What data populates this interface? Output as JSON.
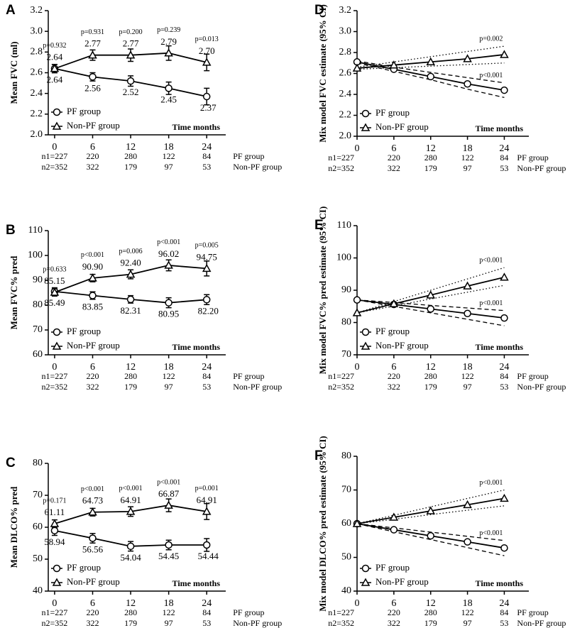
{
  "chart_data": [
    {
      "type": "line",
      "panel": "A",
      "ylabel": "Mean FVC (ml)",
      "xlabel": "Time months",
      "x": [
        0,
        6,
        12,
        18,
        24
      ],
      "xlim": [
        -1,
        27
      ],
      "xticks": [
        0,
        6,
        12,
        18,
        24
      ],
      "ylim": [
        2.0,
        3.2
      ],
      "yticks": [
        {
          "value": 2.0,
          "label": "2.0"
        },
        2.2,
        2.4,
        2.6,
        2.8,
        {
          "value": 3.0,
          "label": "3.0"
        },
        3.2
      ],
      "legend": "lower left",
      "pvalues": [
        "p=0.932",
        "p=0.931",
        "p=0.200",
        "p=0.239",
        "p=0.013"
      ],
      "series": [
        {
          "name": "PF group",
          "color": "#000000",
          "marker": "circle",
          "values": [
            2.64,
            2.56,
            2.52,
            2.45,
            2.37
          ],
          "value_labels": [
            "2.64",
            "2.56",
            "2.52",
            "2.45",
            "2.37"
          ],
          "error": [
            0.04,
            0.04,
            0.05,
            0.06,
            0.08
          ]
        },
        {
          "name": "Non-PF group",
          "color": "#000000",
          "marker": "triangle",
          "values": [
            2.64,
            2.77,
            2.77,
            2.79,
            2.7
          ],
          "value_labels": [
            "2.64",
            "2.77",
            "2.77",
            "2.79",
            "2.70"
          ],
          "error": [
            0.04,
            0.05,
            0.06,
            0.07,
            0.08
          ]
        }
      ],
      "n_rows": [
        {
          "start": "n1=227",
          "counts": [
            220,
            280,
            122,
            84
          ],
          "group": "PF group"
        },
        {
          "start": "n2=352",
          "counts": [
            322,
            179,
            97,
            53
          ],
          "group": "Non-PF group"
        }
      ]
    },
    {
      "type": "line",
      "panel": "B",
      "ylabel": "Mean FVC% pred",
      "xlabel": "Time months",
      "x": [
        0,
        6,
        12,
        18,
        24
      ],
      "xlim": [
        -1,
        27
      ],
      "xticks": [
        0,
        6,
        12,
        18,
        24
      ],
      "ylim": [
        60,
        110
      ],
      "yticks": [
        60,
        70,
        80,
        90,
        100,
        110
      ],
      "legend": "lower left",
      "pvalues": [
        "p=0.633",
        "p<0.001",
        "p=0.006",
        "p<0.001",
        "p=0.005"
      ],
      "series": [
        {
          "name": "PF group",
          "color": "#000000",
          "marker": "circle",
          "values": [
            85.49,
            83.85,
            82.31,
            80.95,
            82.2
          ],
          "value_labels": [
            "85.49",
            "83.85",
            "82.31",
            "80.95",
            "82.20"
          ],
          "error": [
            1.5,
            1.5,
            1.5,
            2,
            2
          ]
        },
        {
          "name": "Non-PF group",
          "color": "#000000",
          "marker": "triangle",
          "values": [
            85.15,
            90.9,
            92.4,
            96.02,
            94.75
          ],
          "value_labels": [
            "85.15",
            "90.90",
            "92.40",
            "96.02",
            "94.75"
          ],
          "error": [
            1.5,
            1.5,
            1.8,
            2.2,
            3
          ]
        }
      ],
      "n_rows": [
        {
          "start": "n1=227",
          "counts": [
            220,
            280,
            122,
            84
          ],
          "group": "PF group"
        },
        {
          "start": "n2=352",
          "counts": [
            322,
            179,
            97,
            53
          ],
          "group": "Non-PF group"
        }
      ]
    },
    {
      "type": "line",
      "panel": "C",
      "ylabel": "Mean DLCO% pred",
      "xlabel": "Time months",
      "x": [
        0,
        6,
        12,
        18,
        24
      ],
      "xlim": [
        -1,
        27
      ],
      "xticks": [
        0,
        6,
        12,
        18,
        24
      ],
      "ylim": [
        40,
        80
      ],
      "yticks": [
        40,
        50,
        60,
        70,
        80
      ],
      "legend": "lower left",
      "pvalues": [
        "p=0.171",
        "p<0.001",
        "p<0.001",
        "p<0.001",
        "p=0.001"
      ],
      "series": [
        {
          "name": "PF group",
          "color": "#000000",
          "marker": "circle",
          "values": [
            58.94,
            56.56,
            54.04,
            54.45,
            54.44
          ],
          "value_labels": [
            "58.94",
            "56.56",
            "54.04",
            "54.45",
            "54.44"
          ],
          "error": [
            1.5,
            1.5,
            1.5,
            1.5,
            2
          ]
        },
        {
          "name": "Non-PF group",
          "color": "#000000",
          "marker": "triangle",
          "values": [
            61.11,
            64.73,
            64.91,
            66.87,
            64.91
          ],
          "value_labels": [
            "61.11",
            "64.73",
            "64.91",
            "66.87",
            "64.91"
          ],
          "error": [
            1.2,
            1.2,
            1.5,
            2,
            2.5
          ]
        }
      ],
      "n_rows": [
        {
          "start": "n1=227",
          "counts": [
            220,
            280,
            122,
            84
          ],
          "group": "PF group"
        },
        {
          "start": "n2=352",
          "counts": [
            322,
            179,
            97,
            53
          ],
          "group": "Non-PF group"
        }
      ]
    },
    {
      "type": "line",
      "panel": "D",
      "ylabel": "Mix model FVC estimate (95% CI)",
      "xlabel": "Time months",
      "x": [
        0,
        6,
        12,
        18,
        24
      ],
      "xlim": [
        0,
        28
      ],
      "xticks": [
        0,
        6,
        12,
        18,
        24
      ],
      "ylim": [
        2.0,
        3.2
      ],
      "yticks": [
        {
          "value": 2.0,
          "label": "2.0"
        },
        2.2,
        2.4,
        2.6,
        2.8,
        {
          "value": 3.0,
          "label": "3.0"
        },
        3.2
      ],
      "legend": "lower left",
      "series": [
        {
          "name": "PF group",
          "color": "#000000",
          "marker": "circle",
          "ci_style": "dashed",
          "p": "p<0.001",
          "values": [
            2.71,
            2.64,
            2.57,
            2.5,
            2.44
          ],
          "lower": [
            2.7,
            2.62,
            2.54,
            2.45,
            2.37
          ],
          "upper": [
            2.72,
            2.66,
            2.61,
            2.56,
            2.51
          ]
        },
        {
          "name": "Non-PF group",
          "color": "#000000",
          "marker": "triangle",
          "ci_style": "dotted",
          "p": "p=0.002",
          "values": [
            2.65,
            2.68,
            2.71,
            2.74,
            2.78
          ],
          "lower": [
            2.64,
            2.655,
            2.67,
            2.685,
            2.7
          ],
          "upper": [
            2.66,
            2.71,
            2.76,
            2.81,
            2.86
          ]
        }
      ],
      "n_rows": [
        {
          "start": "n1=227",
          "counts": [
            220,
            280,
            122,
            84
          ],
          "group": "PF group"
        },
        {
          "start": "n2=352",
          "counts": [
            322,
            179,
            97,
            53
          ],
          "group": "Non-PF group"
        }
      ]
    },
    {
      "type": "line",
      "panel": "E",
      "ylabel": "Mix model FVC% pred estimate (95% CI)",
      "xlabel": "Time months",
      "x": [
        0,
        6,
        12,
        18,
        24
      ],
      "xlim": [
        0,
        28
      ],
      "xticks": [
        0,
        6,
        12,
        18,
        24
      ],
      "ylim": [
        70,
        110
      ],
      "yticks": [
        70,
        80,
        90,
        100,
        110
      ],
      "legend": "lower left",
      "series": [
        {
          "name": "PF group",
          "color": "#000000",
          "marker": "circle",
          "ci_style": "dashed",
          "p": "p<0.001",
          "values": [
            87,
            85.6,
            84.2,
            82.8,
            81.4
          ],
          "lower": [
            87,
            85,
            83,
            81,
            79
          ],
          "upper": [
            87,
            86.2,
            85.3,
            84.5,
            83.7
          ]
        },
        {
          "name": "Non-PF group",
          "color": "#000000",
          "marker": "triangle",
          "ci_style": "dotted",
          "p": "p<0.001",
          "values": [
            83,
            85.8,
            88.5,
            91.3,
            94
          ],
          "lower": [
            83,
            85.1,
            87.3,
            89.4,
            91.5
          ],
          "upper": [
            83,
            86.5,
            90,
            93.5,
            97
          ]
        }
      ],
      "n_rows": [
        {
          "start": "n1=227",
          "counts": [
            220,
            280,
            122,
            84
          ],
          "group": "PF group"
        },
        {
          "start": "n2=352",
          "counts": [
            322,
            179,
            97,
            53
          ],
          "group": "Non-PF group"
        }
      ]
    },
    {
      "type": "line",
      "panel": "F",
      "ylabel": "Mix model DLCO% pred estimate (95% CI)",
      "xlabel": "Time months",
      "x": [
        0,
        6,
        12,
        18,
        24
      ],
      "xlim": [
        0,
        28
      ],
      "xticks": [
        0,
        6,
        12,
        18,
        24
      ],
      "ylim": [
        40,
        80
      ],
      "yticks": [
        40,
        50,
        60,
        70,
        80
      ],
      "legend": "lower left",
      "series": [
        {
          "name": "PF group",
          "color": "#000000",
          "marker": "circle",
          "ci_style": "dashed",
          "p": "p<0.001",
          "values": [
            60,
            58.2,
            56.4,
            54.6,
            52.8
          ],
          "lower": [
            60,
            57.6,
            55.3,
            52.9,
            50.5
          ],
          "upper": [
            60,
            58.75,
            57.5,
            56.25,
            55
          ]
        },
        {
          "name": "Non-PF group",
          "color": "#000000",
          "marker": "triangle",
          "ci_style": "dotted",
          "p": "p<0.001",
          "values": [
            60,
            61.9,
            63.8,
            65.6,
            67.5
          ],
          "lower": [
            60,
            61.3,
            62.7,
            64,
            65.3
          ],
          "upper": [
            60,
            62.5,
            65,
            67.5,
            70
          ]
        }
      ],
      "n_rows": [
        {
          "start": "n1=227",
          "counts": [
            220,
            280,
            122,
            84
          ],
          "group": "PF group"
        },
        {
          "start": "n2=352",
          "counts": [
            322,
            179,
            97,
            53
          ],
          "group": "Non-PF group"
        }
      ]
    }
  ]
}
